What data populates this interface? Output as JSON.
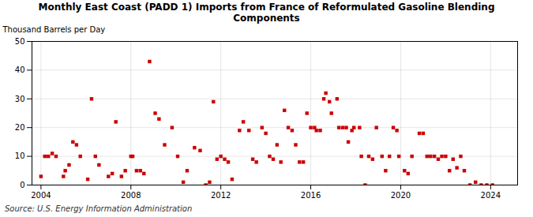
{
  "chart_data": {
    "type": "scatter",
    "title": "Monthly East Coast (PADD 1) Imports from France of Reformulated Gasoline Blending\nComponents",
    "ylabel": "Thousand Barrels per Day",
    "source": "Source: U.S. Energy Information Administration",
    "color": "#cc0000",
    "marker": "square",
    "grid": true,
    "xlim": [
      2003.6,
      2025.2
    ],
    "ylim": [
      0,
      50
    ],
    "xticks": [
      2004,
      2008,
      2012,
      2016,
      2020,
      2024
    ],
    "yticks": [
      0,
      10,
      20,
      30,
      40,
      50
    ],
    "x": [
      2004.0,
      2004.17,
      2004.33,
      2004.5,
      2004.67,
      2005.0,
      2005.08,
      2005.25,
      2005.42,
      2005.58,
      2005.75,
      2006.08,
      2006.25,
      2006.42,
      2006.58,
      2007.0,
      2007.17,
      2007.33,
      2007.58,
      2007.75,
      2008.0,
      2008.08,
      2008.25,
      2008.42,
      2008.58,
      2008.83,
      2009.08,
      2009.25,
      2009.5,
      2009.83,
      2010.08,
      2010.33,
      2010.5,
      2010.83,
      2011.08,
      2011.33,
      2011.5,
      2011.67,
      2011.83,
      2012.0,
      2012.17,
      2012.33,
      2012.5,
      2012.83,
      2013.0,
      2013.25,
      2013.42,
      2013.58,
      2013.83,
      2014.0,
      2014.17,
      2014.33,
      2014.5,
      2014.67,
      2014.83,
      2015.0,
      2015.17,
      2015.33,
      2015.5,
      2015.67,
      2015.83,
      2016.0,
      2016.17,
      2016.25,
      2016.42,
      2016.58,
      2016.67,
      2016.83,
      2016.92,
      2017.17,
      2017.25,
      2017.42,
      2017.58,
      2017.67,
      2017.83,
      2017.92,
      2018.17,
      2018.25,
      2018.42,
      2018.58,
      2018.75,
      2018.92,
      2019.17,
      2019.33,
      2019.5,
      2019.67,
      2019.83,
      2019.92,
      2020.17,
      2020.33,
      2020.5,
      2020.83,
      2021.0,
      2021.17,
      2021.33,
      2021.5,
      2021.67,
      2021.83,
      2022.0,
      2022.17,
      2022.33,
      2022.5,
      2022.67,
      2022.83,
      2023.08,
      2023.33,
      2023.58,
      2023.83,
      2024.08
    ],
    "values": [
      3,
      10,
      10,
      11,
      10,
      3,
      5,
      7,
      15,
      14,
      10,
      2,
      30,
      10,
      7,
      3,
      4,
      22,
      3,
      5,
      10,
      10,
      5,
      5,
      4,
      43,
      25,
      23,
      14,
      20,
      10,
      1,
      5,
      13,
      12,
      0,
      1,
      29,
      9,
      10,
      9,
      8,
      2,
      19,
      22,
      19,
      9,
      8,
      20,
      18,
      10,
      9,
      14,
      8,
      26,
      20,
      19,
      14,
      8,
      8,
      25,
      20,
      20,
      19,
      19,
      30,
      32,
      29,
      25,
      30,
      20,
      20,
      20,
      15,
      19,
      20,
      20,
      10,
      0,
      10,
      9,
      20,
      10,
      5,
      10,
      20,
      19,
      10,
      5,
      4,
      10,
      18,
      18,
      10,
      10,
      10,
      9,
      10,
      10,
      5,
      9,
      6,
      10,
      5,
      0,
      1,
      0,
      0,
      0
    ]
  }
}
